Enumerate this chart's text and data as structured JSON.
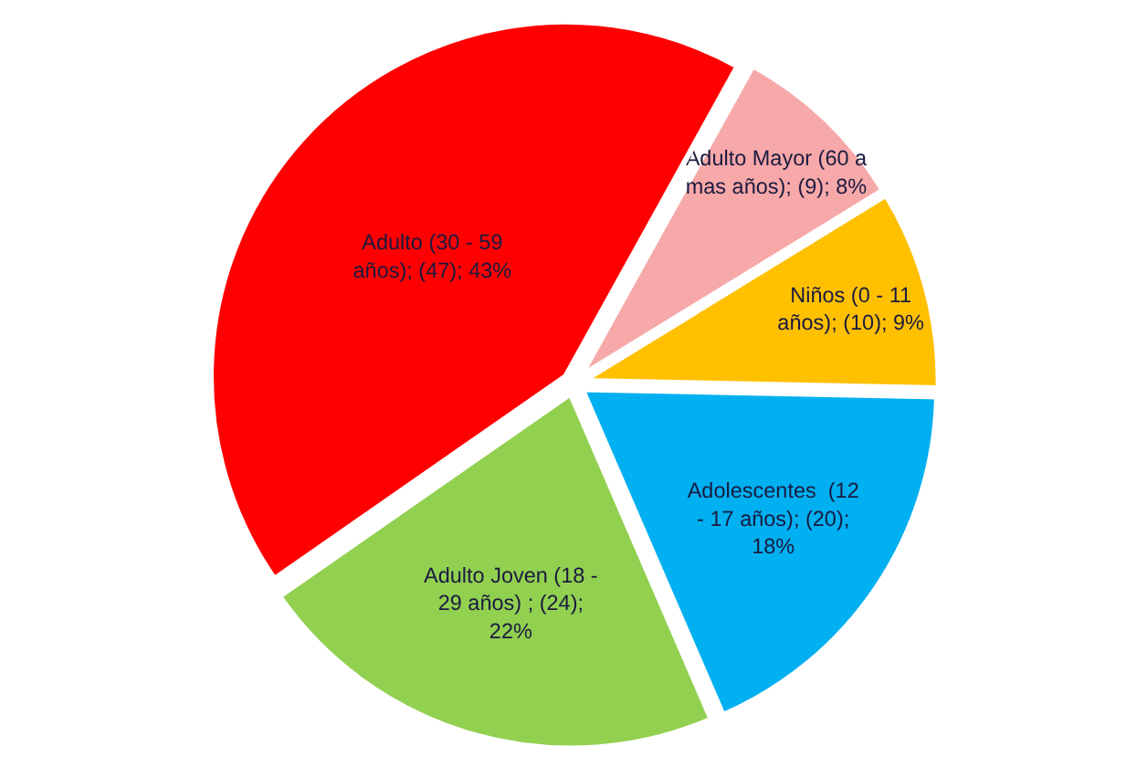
{
  "chart_data": {
    "type": "pie",
    "categories": [
      "Adulto Mayor (60 a mas años)",
      "Niños (0 - 11 años)",
      "Adolescentes  (12 - 17 años)",
      "Adulto Joven (18 - 29 años) ",
      "Adulto (30 - 59 años)"
    ],
    "values": [
      9,
      10,
      20,
      24,
      47
    ],
    "value_labels": [
      "(9); 8%",
      "(10); 9%",
      "(20); 18%",
      "(24); 22%",
      "(47); 43%"
    ],
    "colors": [
      "#f7a8a8",
      "#ffc000",
      "#00b0f0",
      "#92d050",
      "#ff0000"
    ],
    "legend": false
  }
}
